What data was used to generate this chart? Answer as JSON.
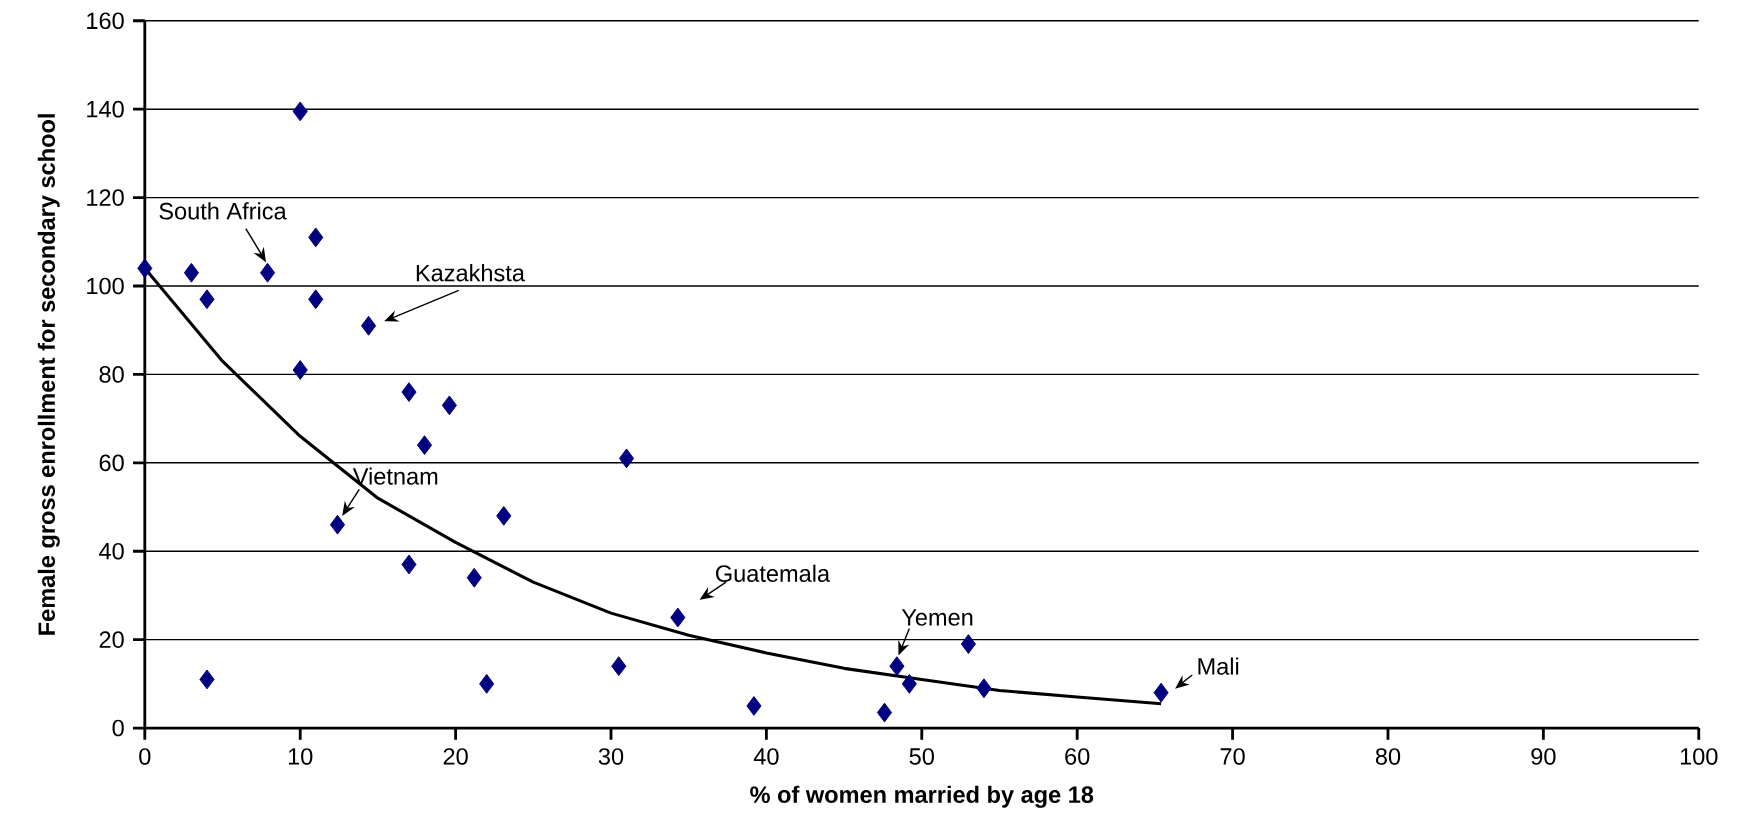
{
  "chart_data": {
    "type": "scatter",
    "xlabel": "% of women married by age 18",
    "ylabel": "Female gross enrollment for secondary school",
    "xlim": [
      0,
      100
    ],
    "ylim": [
      0,
      160
    ],
    "xticks": [
      0,
      10,
      20,
      30,
      40,
      50,
      60,
      70,
      80,
      90,
      100
    ],
    "yticks": [
      0,
      20,
      40,
      60,
      80,
      100,
      120,
      140,
      160
    ],
    "grid": "y",
    "series": [
      {
        "marker": "diamond",
        "color": "#000080",
        "x": [
          0,
          3,
          4,
          4,
          7.9,
          10,
          10,
          11,
          11,
          14.4,
          12.4,
          17,
          17,
          18,
          19.6,
          21.2,
          22,
          23.1,
          30.5,
          31,
          34.3,
          39.2,
          47.6,
          48.4,
          49.2,
          53,
          54,
          65.4
        ],
        "values": [
          104,
          103,
          97,
          11,
          103,
          139.5,
          81,
          111,
          97,
          91,
          46,
          76,
          37,
          64,
          73,
          34,
          10,
          48,
          14,
          61,
          25,
          5,
          3.5,
          14,
          10,
          19,
          9,
          8
        ]
      },
      {
        "type": "line",
        "marker": "none",
        "color": "#000000",
        "x": [
          0,
          5,
          10,
          15,
          20,
          25,
          30,
          35,
          40,
          45,
          50,
          55,
          60,
          65.4
        ],
        "values": [
          104,
          83,
          66,
          52,
          42,
          33,
          26,
          21,
          17,
          13.5,
          11,
          8.5,
          7,
          5.5
        ]
      }
    ],
    "annotations": [
      {
        "text": "South Africa",
        "x": 7.9,
        "y": 103
      },
      {
        "text": "Kazakhsta",
        "x": 14.4,
        "y": 91
      },
      {
        "text": "Vietnam",
        "x": 12.4,
        "y": 46
      },
      {
        "text": "Guatemala",
        "x": 34.3,
        "y": 25
      },
      {
        "text": "Yemen",
        "x": 48.4,
        "y": 14
      },
      {
        "text": "Mali",
        "x": 65.4,
        "y": 8
      }
    ]
  }
}
